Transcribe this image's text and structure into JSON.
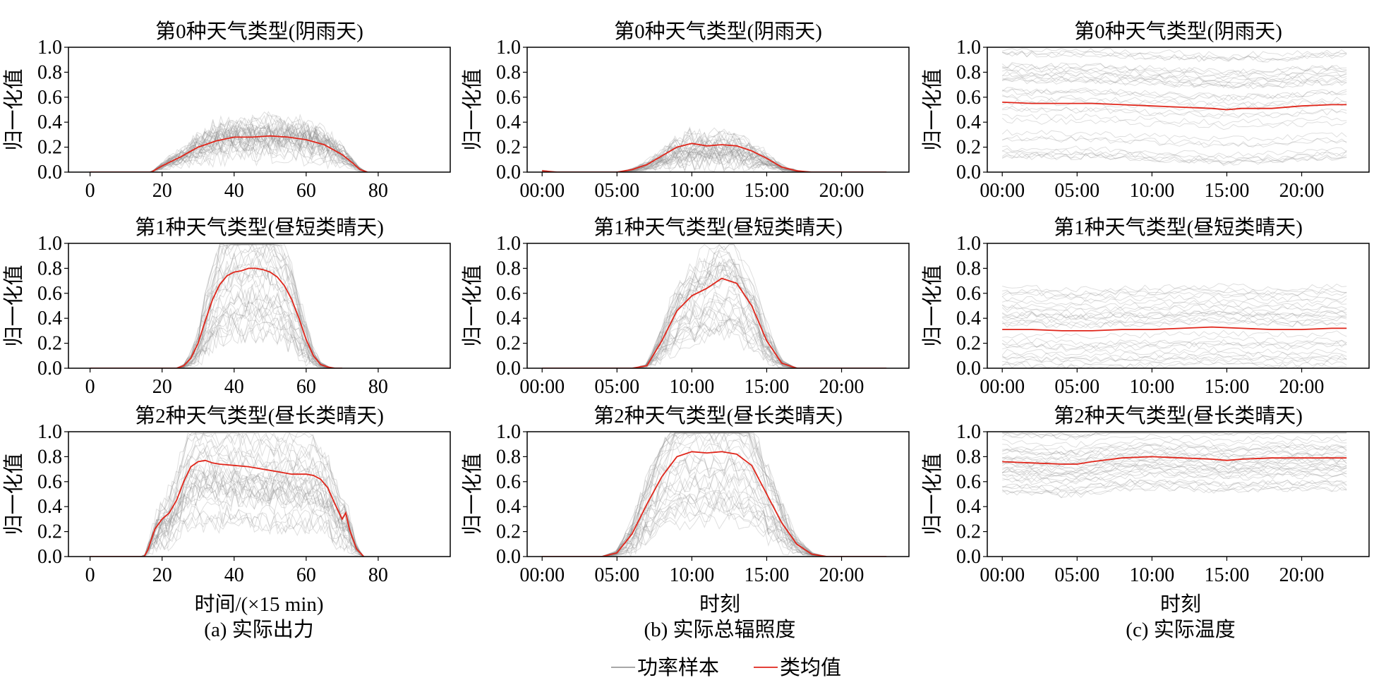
{
  "legend": {
    "sample_label": "功率样本",
    "mean_label": "类均值",
    "sample_color": "#8c8c8c",
    "mean_color": "#e0261b"
  },
  "columns": [
    {
      "caption": "(a) 实际出力",
      "xlabel": "时间/(×15 min)"
    },
    {
      "caption": "(b) 实际总辐照度",
      "xlabel": "时刻"
    },
    {
      "caption": "(c) 实际温度",
      "xlabel": "时刻"
    }
  ],
  "chart_data": [
    {
      "type": "line",
      "row": 0,
      "col": 0,
      "title": "第0种天气类型(阴雨天)",
      "ylabel": "归一化值",
      "xlabel": "",
      "x_unit": "interval",
      "xlim": [
        -6,
        100
      ],
      "ylim": [
        0,
        1
      ],
      "xticks": [
        0,
        20,
        40,
        60,
        80
      ],
      "xtick_labels": [
        "0",
        "20",
        "40",
        "60",
        "80"
      ],
      "yticks": [
        0,
        0.2,
        0.4,
        0.6,
        0.8,
        1.0
      ],
      "ytick_labels": [
        "0.0",
        "0.2",
        "0.4",
        "0.6",
        "0.8",
        "1.0"
      ],
      "series": [
        {
          "name": "类均值",
          "x": [
            0,
            17,
            20,
            25,
            30,
            35,
            40,
            45,
            50,
            55,
            60,
            65,
            70,
            73,
            75,
            77
          ],
          "y": [
            0,
            0,
            0.05,
            0.12,
            0.2,
            0.25,
            0.28,
            0.28,
            0.29,
            0.28,
            0.26,
            0.22,
            0.14,
            0.07,
            0.02,
            0
          ]
        }
      ]
    },
    {
      "type": "line",
      "row": 0,
      "col": 1,
      "title": "第0种天气类型(阴雨天)",
      "ylabel": "归一化值",
      "xlabel": "",
      "x_unit": "hour",
      "xlim": [
        -1,
        24.5
      ],
      "ylim": [
        0,
        1
      ],
      "xticks": [
        0,
        5,
        10,
        15,
        20
      ],
      "xtick_labels": [
        "00:00",
        "05:00",
        "10:00",
        "15:00",
        "20:00"
      ],
      "yticks": [
        0,
        0.2,
        0.4,
        0.6,
        0.8,
        1.0
      ],
      "ytick_labels": [
        "0.0",
        "0.2",
        "0.4",
        "0.6",
        "0.8",
        "1.0"
      ],
      "series": [
        {
          "name": "类均值",
          "x": [
            0,
            1,
            2,
            3,
            4,
            5,
            6,
            7,
            8,
            9,
            10,
            11,
            12,
            13,
            14,
            15,
            16,
            17,
            18,
            19,
            20,
            21,
            22,
            23
          ],
          "y": [
            0.01,
            0,
            0,
            0,
            0,
            0,
            0.02,
            0.06,
            0.13,
            0.2,
            0.23,
            0.21,
            0.22,
            0.21,
            0.17,
            0.11,
            0.04,
            0.01,
            0,
            0,
            0,
            0,
            0,
            0
          ]
        }
      ]
    },
    {
      "type": "line",
      "row": 0,
      "col": 2,
      "title": "第0种天气类型(阴雨天)",
      "ylabel": "归一化值",
      "xlabel": "",
      "x_unit": "hour",
      "xlim": [
        -1,
        24.5
      ],
      "ylim": [
        0,
        1
      ],
      "xticks": [
        0,
        5,
        10,
        15,
        20
      ],
      "xtick_labels": [
        "00:00",
        "05:00",
        "10:00",
        "15:00",
        "20:00"
      ],
      "yticks": [
        0,
        0.2,
        0.4,
        0.6,
        0.8,
        1.0
      ],
      "ytick_labels": [
        "0.0",
        "0.2",
        "0.4",
        "0.6",
        "0.8",
        "1.0"
      ],
      "series": [
        {
          "name": "类均值",
          "x": [
            0,
            2,
            4,
            6,
            8,
            10,
            12,
            14,
            15,
            16,
            18,
            20,
            22,
            23
          ],
          "y": [
            0.56,
            0.55,
            0.55,
            0.55,
            0.54,
            0.53,
            0.52,
            0.51,
            0.5,
            0.51,
            0.51,
            0.53,
            0.54,
            0.54
          ]
        }
      ]
    },
    {
      "type": "line",
      "row": 1,
      "col": 0,
      "title": "第1种天气类型(昼短类晴天)",
      "ylabel": "归一化值",
      "xlabel": "",
      "x_unit": "interval",
      "xlim": [
        -6,
        100
      ],
      "ylim": [
        0,
        1
      ],
      "xticks": [
        0,
        20,
        40,
        60,
        80
      ],
      "xtick_labels": [
        "0",
        "20",
        "40",
        "60",
        "80"
      ],
      "yticks": [
        0,
        0.2,
        0.4,
        0.6,
        0.8,
        1.0
      ],
      "ytick_labels": [
        "0.0",
        "0.2",
        "0.4",
        "0.6",
        "0.8",
        "1.0"
      ],
      "series": [
        {
          "name": "类均值",
          "x": [
            0,
            24,
            26,
            28,
            30,
            32,
            34,
            36,
            38,
            40,
            42,
            44,
            46,
            48,
            50,
            52,
            54,
            56,
            58,
            60,
            62,
            64,
            66,
            68,
            70
          ],
          "y": [
            0,
            0,
            0.02,
            0.08,
            0.2,
            0.38,
            0.55,
            0.67,
            0.74,
            0.77,
            0.78,
            0.8,
            0.8,
            0.79,
            0.77,
            0.73,
            0.66,
            0.55,
            0.4,
            0.23,
            0.1,
            0.03,
            0.01,
            0,
            0
          ]
        }
      ]
    },
    {
      "type": "line",
      "row": 1,
      "col": 1,
      "title": "第1种天气类型(昼短类晴天)",
      "ylabel": "归一化值",
      "xlabel": "",
      "x_unit": "hour",
      "xlim": [
        -1,
        24.5
      ],
      "ylim": [
        0,
        1
      ],
      "xticks": [
        0,
        5,
        10,
        15,
        20
      ],
      "xtick_labels": [
        "00:00",
        "05:00",
        "10:00",
        "15:00",
        "20:00"
      ],
      "yticks": [
        0,
        0.2,
        0.4,
        0.6,
        0.8,
        1.0
      ],
      "ytick_labels": [
        "0.0",
        "0.2",
        "0.4",
        "0.6",
        "0.8",
        "1.0"
      ],
      "series": [
        {
          "name": "类均值",
          "x": [
            0,
            1,
            2,
            3,
            4,
            5,
            6,
            7,
            8,
            9,
            10,
            11,
            12,
            13,
            14,
            15,
            16,
            17,
            18,
            19,
            20,
            21,
            22,
            23
          ],
          "y": [
            0,
            0,
            0,
            0,
            0,
            0,
            0,
            0.02,
            0.22,
            0.46,
            0.58,
            0.64,
            0.72,
            0.68,
            0.5,
            0.22,
            0.04,
            0,
            0,
            0,
            0,
            0,
            0,
            0
          ]
        }
      ]
    },
    {
      "type": "line",
      "row": 1,
      "col": 2,
      "title": "第1种天气类型(昼短类晴天)",
      "ylabel": "归一化值",
      "xlabel": "",
      "x_unit": "hour",
      "xlim": [
        -1,
        24.5
      ],
      "ylim": [
        0,
        1
      ],
      "xticks": [
        0,
        5,
        10,
        15,
        20
      ],
      "xtick_labels": [
        "00:00",
        "05:00",
        "10:00",
        "15:00",
        "20:00"
      ],
      "yticks": [
        0,
        0.2,
        0.4,
        0.6,
        0.8,
        1.0
      ],
      "ytick_labels": [
        "0.0",
        "0.2",
        "0.4",
        "0.6",
        "0.8",
        "1.0"
      ],
      "series": [
        {
          "name": "类均值",
          "x": [
            0,
            2,
            4,
            6,
            8,
            10,
            12,
            14,
            16,
            18,
            20,
            22,
            23
          ],
          "y": [
            0.31,
            0.31,
            0.3,
            0.3,
            0.31,
            0.31,
            0.32,
            0.33,
            0.32,
            0.31,
            0.31,
            0.32,
            0.32
          ]
        }
      ]
    },
    {
      "type": "line",
      "row": 2,
      "col": 0,
      "title": "第2种天气类型(昼长类晴天)",
      "ylabel": "归一化值",
      "xlabel": "时间/(×15 min)",
      "x_unit": "interval",
      "xlim": [
        -6,
        100
      ],
      "ylim": [
        0,
        1
      ],
      "xticks": [
        0,
        20,
        40,
        60,
        80
      ],
      "xtick_labels": [
        "0",
        "20",
        "40",
        "60",
        "80"
      ],
      "yticks": [
        0,
        0.2,
        0.4,
        0.6,
        0.8,
        1.0
      ],
      "ytick_labels": [
        "0.0",
        "0.2",
        "0.4",
        "0.6",
        "0.8",
        "1.0"
      ],
      "series": [
        {
          "name": "类均值",
          "x": [
            0,
            15,
            16,
            18,
            20,
            22,
            24,
            26,
            28,
            30,
            32,
            34,
            36,
            40,
            44,
            48,
            52,
            56,
            60,
            62,
            64,
            66,
            68,
            70,
            71,
            72,
            74,
            76
          ],
          "y": [
            0,
            0,
            0.05,
            0.22,
            0.3,
            0.35,
            0.45,
            0.6,
            0.72,
            0.76,
            0.77,
            0.75,
            0.74,
            0.73,
            0.72,
            0.7,
            0.68,
            0.66,
            0.66,
            0.65,
            0.62,
            0.55,
            0.42,
            0.3,
            0.35,
            0.22,
            0.06,
            0
          ]
        }
      ]
    },
    {
      "type": "line",
      "row": 2,
      "col": 1,
      "title": "第2种天气类型(昼长类晴天)",
      "ylabel": "归一化值",
      "xlabel": "时刻",
      "x_unit": "hour",
      "xlim": [
        -1,
        24.5
      ],
      "ylim": [
        0,
        1
      ],
      "xticks": [
        0,
        5,
        10,
        15,
        20
      ],
      "xtick_labels": [
        "00:00",
        "05:00",
        "10:00",
        "15:00",
        "20:00"
      ],
      "yticks": [
        0,
        0.2,
        0.4,
        0.6,
        0.8,
        1.0
      ],
      "ytick_labels": [
        "0.0",
        "0.2",
        "0.4",
        "0.6",
        "0.8",
        "1.0"
      ],
      "series": [
        {
          "name": "类均值",
          "x": [
            0,
            1,
            2,
            3,
            4,
            5,
            6,
            7,
            8,
            9,
            10,
            11,
            12,
            13,
            14,
            15,
            16,
            17,
            18,
            19,
            20,
            21,
            22,
            23
          ],
          "y": [
            0,
            0,
            0,
            0,
            0,
            0.03,
            0.18,
            0.42,
            0.64,
            0.8,
            0.84,
            0.83,
            0.84,
            0.82,
            0.73,
            0.5,
            0.27,
            0.1,
            0.02,
            0,
            0,
            0,
            0,
            0
          ]
        }
      ]
    },
    {
      "type": "line",
      "row": 2,
      "col": 2,
      "title": "第2种天气类型(昼长类晴天)",
      "ylabel": "归一化值",
      "xlabel": "时刻",
      "x_unit": "hour",
      "xlim": [
        -1,
        24.5
      ],
      "ylim": [
        0,
        1
      ],
      "xticks": [
        0,
        5,
        10,
        15,
        20
      ],
      "xtick_labels": [
        "00:00",
        "05:00",
        "10:00",
        "15:00",
        "20:00"
      ],
      "yticks": [
        0,
        0.2,
        0.4,
        0.6,
        0.8,
        1.0
      ],
      "ytick_labels": [
        "0.0",
        "0.2",
        "0.4",
        "0.6",
        "0.8",
        "1.0"
      ],
      "series": [
        {
          "name": "类均值",
          "x": [
            0,
            2,
            4,
            5,
            6,
            8,
            10,
            12,
            14,
            15,
            16,
            18,
            20,
            22,
            23
          ],
          "y": [
            0.76,
            0.75,
            0.74,
            0.74,
            0.76,
            0.79,
            0.8,
            0.79,
            0.78,
            0.77,
            0.78,
            0.79,
            0.79,
            0.79,
            0.79
          ]
        }
      ]
    }
  ]
}
